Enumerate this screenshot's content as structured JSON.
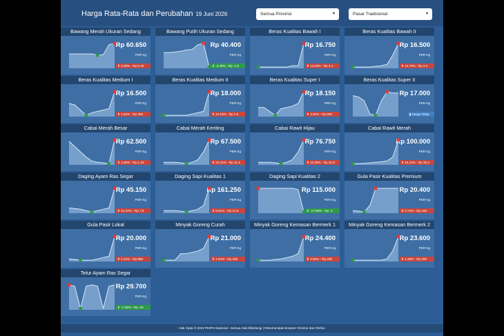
{
  "header": {
    "title": "Harga Rata-Rata dan Perubahan",
    "date": "19 Juni 2026",
    "province_select": "Semua Provinsi",
    "market_select": "Pasar Tradisional"
  },
  "commodities": [
    {
      "name": "Bawang Merah Ukuran Sedang",
      "price": "Rp 60.650",
      "unit": "PER Kg",
      "change": "9.38% - Rp 5.20",
      "dir": "up",
      "trend": [
        0.55,
        0.55,
        0.55,
        0.55,
        0.55,
        0.5,
        0.52,
        0.9,
        0.95
      ]
    },
    {
      "name": "Bawang Putih Ukuran Sedang",
      "price": "Rp 40.400",
      "unit": "PER Kg",
      "change": "-4.49% - Rp -1.9",
      "dir": "down",
      "trend": [
        0.6,
        0.6,
        0.62,
        0.65,
        0.7,
        0.72,
        0.9,
        0.95,
        0.05
      ]
    },
    {
      "name": "Beras Kualitas Bawah I",
      "price": "Rp 16.750",
      "unit": "PER Kg",
      "change": "14.33% - Rp 2.1",
      "dir": "up",
      "trend": [
        0.05,
        0.05,
        0.05,
        0.05,
        0.05,
        0.05,
        0.1,
        0.1,
        0.95
      ]
    },
    {
      "name": "Beras Kualitas Bawah II",
      "price": "Rp 16.500",
      "unit": "PER Kg",
      "change": "13.79% - Rp 2.0",
      "dir": "up",
      "trend": [
        0.05,
        0.05,
        0.05,
        0.05,
        0.08,
        0.1,
        0.15,
        0.5,
        0.95
      ]
    },
    {
      "name": "Beras Kualitas Medium I",
      "price": "Rp 16.500",
      "unit": "PER Kg",
      "change": "1.54% - Rp 250",
      "dir": "up",
      "trend": [
        0.5,
        0.45,
        0.25,
        0.05,
        0.15,
        0.2,
        0.25,
        0.3,
        0.95
      ]
    },
    {
      "name": "Beras Kualitas Medium II",
      "price": "Rp 18.000",
      "unit": "PER Kg",
      "change": "12.15% - Rp 1.9",
      "dir": "up",
      "trend": [
        0.05,
        0.05,
        0.05,
        0.05,
        0.05,
        0.1,
        0.15,
        0.2,
        0.95
      ]
    },
    {
      "name": "Beras Kualitas Super I",
      "price": "Rp 18.150",
      "unit": "PER Kg",
      "change": "3.42% - Rp 600",
      "dir": "up",
      "trend": [
        0.35,
        0.35,
        0.2,
        0.05,
        0.3,
        0.35,
        0.4,
        0.5,
        0.95
      ]
    },
    {
      "name": "Beras Kualitas Super II",
      "price": "Rp 17.000",
      "unit": "PER Kg",
      "change": "Harga Tetap",
      "dir": "flat",
      "trend": [
        0.8,
        0.75,
        0.6,
        0.1,
        0.05,
        0.6,
        0.95,
        0.9,
        0.9
      ]
    },
    {
      "name": "Cabai Merah Besar",
      "price": "Rp 62.500",
      "unit": "PER Kg",
      "change": "1.96% - Rp 1.20",
      "dir": "up",
      "trend": [
        0.9,
        0.7,
        0.5,
        0.3,
        0.15,
        0.1,
        0.08,
        0.05,
        0.95
      ]
    },
    {
      "name": "Cabai Merah Keriting",
      "price": "Rp 67.500",
      "unit": "PER Kg",
      "change": "20.21% - Rp 11.3",
      "dir": "up",
      "trend": [
        0.1,
        0.1,
        0.1,
        0.08,
        0.05,
        0.1,
        0.2,
        0.5,
        0.95
      ]
    },
    {
      "name": "Cabai Rawit Hijau",
      "price": "Rp 76.750",
      "unit": "PER Kg",
      "change": "42.39% - Rp 22.8",
      "dir": "up",
      "trend": [
        0.1,
        0.1,
        0.1,
        0.08,
        0.05,
        0.1,
        0.2,
        0.5,
        0.95
      ]
    },
    {
      "name": "Cabai Rawit Merah",
      "price": "Rp 100.000",
      "unit": "PER Kg",
      "change": "34.14% - Rp 25.4",
      "dir": "up",
      "trend": [
        0.05,
        0.05,
        0.06,
        0.08,
        0.1,
        0.12,
        0.15,
        0.3,
        0.95
      ]
    },
    {
      "name": "Daging Ayam Ras Segar",
      "price": "Rp 45.150",
      "unit": "PER Kg",
      "change": "21.37% - Rp 7.9",
      "dir": "up",
      "trend": [
        0.2,
        0.18,
        0.15,
        0.1,
        0.05,
        0.1,
        0.15,
        0.2,
        0.95
      ]
    },
    {
      "name": "Daging Sapi Kualitas 1",
      "price": "Rp 161.250",
      "unit": "PER Kg",
      "change": "8.51% - Rp 12.6",
      "dir": "up",
      "trend": [
        0.1,
        0.1,
        0.1,
        0.08,
        0.05,
        0.1,
        0.15,
        0.3,
        0.95
      ]
    },
    {
      "name": "Daging Sapi Kualitas 2",
      "price": "Rp 115.000",
      "unit": "PER Kg",
      "change": "-17.65% - Rp -2",
      "dir": "down",
      "trend": [
        0.95,
        0.95,
        0.95,
        0.95,
        0.95,
        0.95,
        0.95,
        0.9,
        0.05
      ]
    },
    {
      "name": "Gula Pasir Kualitas Premium",
      "price": "Rp 20.400",
      "unit": "PER Kg",
      "change": "0.74% - Rp 150",
      "dir": "up",
      "trend": [
        0.1,
        0.08,
        0.05,
        0.3,
        0.95,
        0.95,
        0.95,
        0.95,
        0.95
      ]
    },
    {
      "name": "Gula Pasir Lokal",
      "price": "Rp 20.000",
      "unit": "PER Kg",
      "change": "4.44% - Rp 850",
      "dir": "up",
      "trend": [
        0.1,
        0.08,
        0.05,
        0.05,
        0.05,
        0.1,
        0.15,
        0.2,
        0.95
      ]
    },
    {
      "name": "Minyak Goreng Curah",
      "price": "Rp 21.000",
      "unit": "PER Kg",
      "change": "1.94% - Rp 400",
      "dir": "up",
      "trend": [
        0.05,
        0.05,
        0.05,
        0.3,
        0.3,
        0.35,
        0.4,
        0.5,
        0.95
      ]
    },
    {
      "name": "Minyak Goreng Kemasan Bermerk 1",
      "price": "Rp 24.400",
      "unit": "PER Kg",
      "change": "0.83% - Rp 200",
      "dir": "up",
      "trend": [
        0.05,
        0.05,
        0.05,
        0.08,
        0.1,
        0.15,
        0.2,
        0.3,
        0.95
      ]
    },
    {
      "name": "Minyak Goreng Kemasan Bermerk 2",
      "price": "Rp 23.600",
      "unit": "PER Kg",
      "change": "1.29% - Rp 300",
      "dir": "up",
      "trend": [
        0.05,
        0.05,
        0.05,
        0.05,
        0.05,
        0.05,
        0.1,
        0.4,
        0.95
      ]
    },
    {
      "name": "Telur Ayam Ras Segar",
      "price": "Rp 29.700",
      "unit": "PER Kg",
      "change": "-1.33% - Rp -40",
      "dir": "down",
      "trend": [
        0.95,
        0.9,
        0.05,
        0.9,
        0.95,
        0.9,
        0.05,
        0.9,
        0.95
      ]
    }
  ],
  "footer": "Hak Cipta © 2022 PIHPS Nasional - Semua Hak Dilindungi | Rekomendasi browser Chrome dan Firefox"
}
